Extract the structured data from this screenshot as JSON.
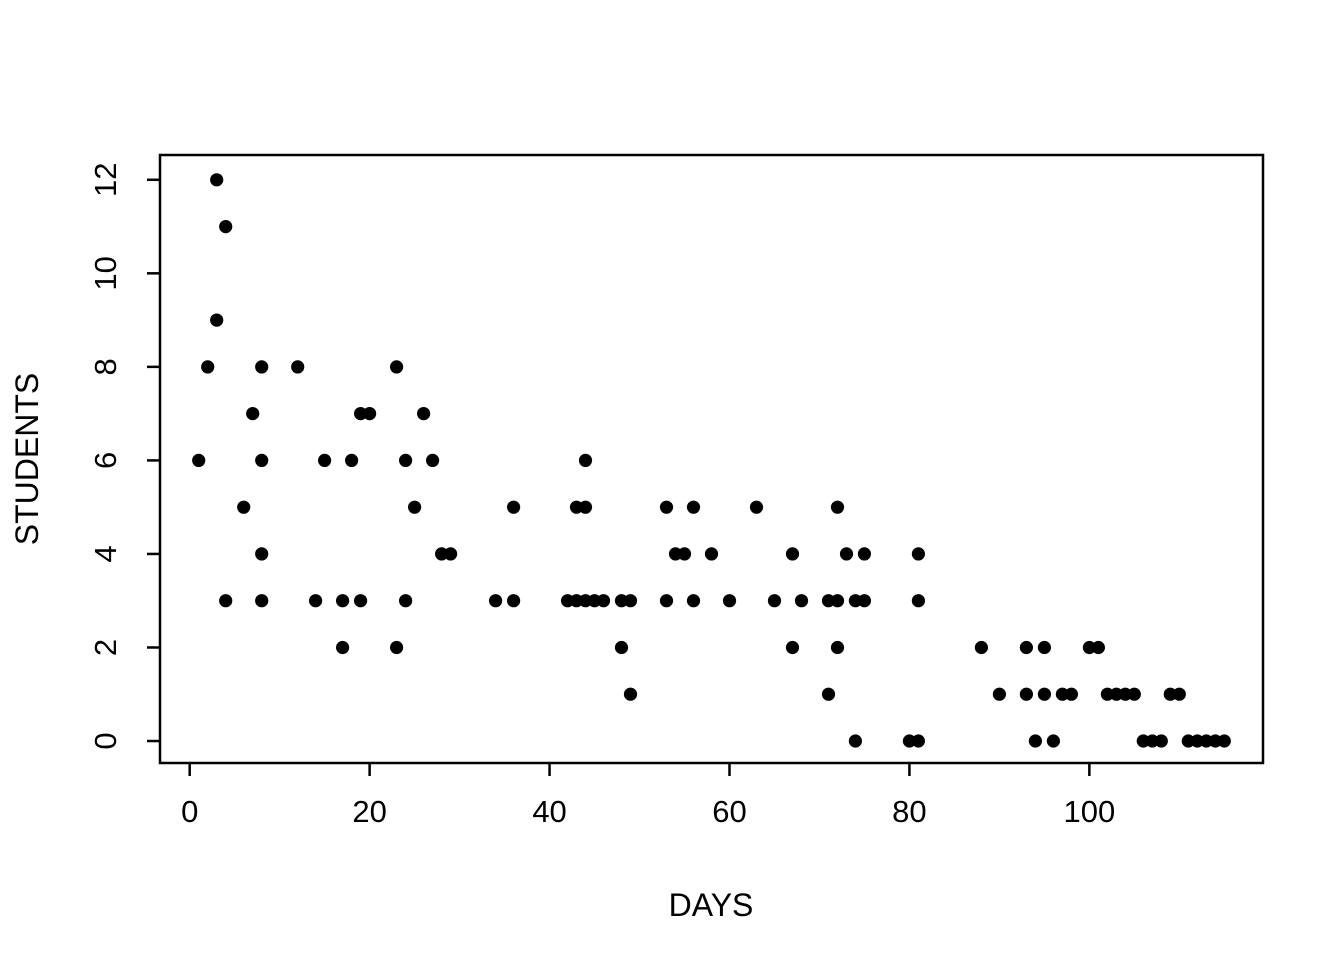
{
  "chart_data": {
    "type": "scatter",
    "title": "",
    "xlabel": "DAYS",
    "ylabel": "STUDENTS",
    "x_ticks": [
      0,
      20,
      40,
      60,
      80,
      100
    ],
    "y_ticks": [
      0,
      2,
      4,
      6,
      8,
      10,
      12
    ],
    "xlim": [
      -3.3,
      119.3
    ],
    "ylim": [
      -0.47,
      12.53
    ],
    "grid": false,
    "legend": "none",
    "point_color": "#000000",
    "point_radius_px": 6.6,
    "axis_color": "#000000",
    "background_color": "#ffffff",
    "points": [
      [
        1,
        6
      ],
      [
        2,
        8
      ],
      [
        3,
        12
      ],
      [
        3,
        9
      ],
      [
        4,
        11
      ],
      [
        4,
        3
      ],
      [
        6,
        5
      ],
      [
        7,
        7
      ],
      [
        8,
        8
      ],
      [
        8,
        6
      ],
      [
        8,
        4
      ],
      [
        8,
        3
      ],
      [
        12,
        8
      ],
      [
        14,
        3
      ],
      [
        15,
        6
      ],
      [
        17,
        3
      ],
      [
        17,
        2
      ],
      [
        18,
        6
      ],
      [
        19,
        7
      ],
      [
        19,
        3
      ],
      [
        20,
        7
      ],
      [
        23,
        8
      ],
      [
        23,
        2
      ],
      [
        24,
        6
      ],
      [
        24,
        3
      ],
      [
        25,
        5
      ],
      [
        26,
        7
      ],
      [
        27,
        6
      ],
      [
        28,
        4
      ],
      [
        29,
        4
      ],
      [
        34,
        3
      ],
      [
        36,
        5
      ],
      [
        36,
        3
      ],
      [
        42,
        3
      ],
      [
        43,
        5
      ],
      [
        43,
        3
      ],
      [
        44,
        6
      ],
      [
        44,
        5
      ],
      [
        44,
        3
      ],
      [
        45,
        3
      ],
      [
        46,
        3
      ],
      [
        48,
        3
      ],
      [
        48,
        2
      ],
      [
        49,
        3
      ],
      [
        49,
        1
      ],
      [
        53,
        5
      ],
      [
        53,
        3
      ],
      [
        54,
        4
      ],
      [
        55,
        4
      ],
      [
        56,
        5
      ],
      [
        56,
        3
      ],
      [
        58,
        4
      ],
      [
        60,
        3
      ],
      [
        63,
        5
      ],
      [
        65,
        3
      ],
      [
        67,
        4
      ],
      [
        67,
        2
      ],
      [
        68,
        3
      ],
      [
        71,
        3
      ],
      [
        71,
        1
      ],
      [
        72,
        5
      ],
      [
        72,
        3
      ],
      [
        72,
        2
      ],
      [
        73,
        4
      ],
      [
        74,
        3
      ],
      [
        74,
        0
      ],
      [
        75,
        4
      ],
      [
        75,
        3
      ],
      [
        80,
        0
      ],
      [
        81,
        4
      ],
      [
        81,
        3
      ],
      [
        81,
        0
      ],
      [
        88,
        2
      ],
      [
        90,
        1
      ],
      [
        93,
        2
      ],
      [
        93,
        1
      ],
      [
        94,
        0
      ],
      [
        95,
        2
      ],
      [
        95,
        1
      ],
      [
        96,
        0
      ],
      [
        97,
        1
      ],
      [
        98,
        1
      ],
      [
        100,
        2
      ],
      [
        101,
        2
      ],
      [
        102,
        1
      ],
      [
        103,
        1
      ],
      [
        104,
        1
      ],
      [
        105,
        1
      ],
      [
        106,
        0
      ],
      [
        107,
        0
      ],
      [
        108,
        0
      ],
      [
        109,
        1
      ],
      [
        110,
        1
      ],
      [
        111,
        0
      ],
      [
        112,
        0
      ],
      [
        113,
        0
      ],
      [
        114,
        0
      ],
      [
        115,
        0
      ]
    ]
  }
}
